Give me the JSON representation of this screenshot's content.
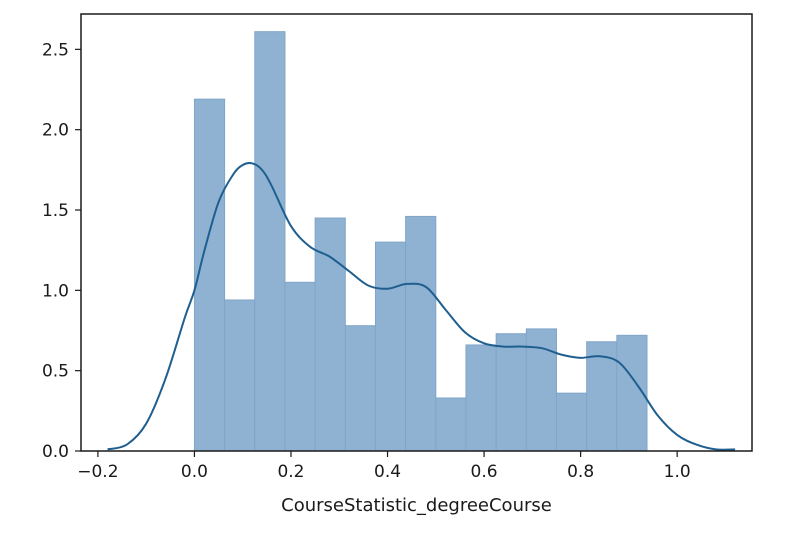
{
  "chart_data": {
    "type": "histogram",
    "xlabel": "CourseStatistic_degreeCourse",
    "ylabel": "",
    "title": "",
    "xlim": [
      -0.235,
      1.155
    ],
    "ylim": [
      0.0,
      2.72
    ],
    "x_ticks": [
      -0.2,
      0.0,
      0.2,
      0.4,
      0.6,
      0.8,
      1.0
    ],
    "x_tick_labels": [
      "−0.2",
      "0.0",
      "0.2",
      "0.4",
      "0.6",
      "0.8",
      "1.0"
    ],
    "y_ticks": [
      0.0,
      0.5,
      1.0,
      1.5,
      2.0,
      2.5
    ],
    "y_tick_labels": [
      "0.0",
      "0.5",
      "1.0",
      "1.5",
      "2.0",
      "2.5"
    ],
    "grid": false,
    "bins": [
      {
        "x0": 0.0,
        "x1": 0.0625,
        "density": 2.19
      },
      {
        "x0": 0.0625,
        "x1": 0.125,
        "density": 0.94
      },
      {
        "x0": 0.125,
        "x1": 0.1875,
        "density": 2.61
      },
      {
        "x0": 0.1875,
        "x1": 0.25,
        "density": 1.05
      },
      {
        "x0": 0.25,
        "x1": 0.3125,
        "density": 1.45
      },
      {
        "x0": 0.3125,
        "x1": 0.375,
        "density": 0.78
      },
      {
        "x0": 0.375,
        "x1": 0.4375,
        "density": 1.3
      },
      {
        "x0": 0.4375,
        "x1": 0.5,
        "density": 1.46
      },
      {
        "x0": 0.5,
        "x1": 0.5625,
        "density": 0.33
      },
      {
        "x0": 0.5625,
        "x1": 0.625,
        "density": 0.66
      },
      {
        "x0": 0.625,
        "x1": 0.6875,
        "density": 0.73
      },
      {
        "x0": 0.6875,
        "x1": 0.75,
        "density": 0.76
      },
      {
        "x0": 0.75,
        "x1": 0.8125,
        "density": 0.36
      },
      {
        "x0": 0.8125,
        "x1": 0.875,
        "density": 0.68
      },
      {
        "x0": 0.875,
        "x1": 0.9375,
        "density": 0.72
      }
    ],
    "kde_curve": {
      "x": [
        -0.18,
        -0.14,
        -0.1,
        -0.06,
        -0.02,
        0.0,
        0.02,
        0.05,
        0.08,
        0.1,
        0.12,
        0.14,
        0.16,
        0.2,
        0.24,
        0.28,
        0.32,
        0.36,
        0.4,
        0.44,
        0.48,
        0.52,
        0.56,
        0.6,
        0.64,
        0.68,
        0.72,
        0.76,
        0.8,
        0.84,
        0.88,
        0.92,
        0.96,
        1.0,
        1.04,
        1.08,
        1.12
      ],
      "y": [
        0.01,
        0.04,
        0.17,
        0.45,
        0.83,
        1.0,
        1.24,
        1.55,
        1.72,
        1.78,
        1.79,
        1.75,
        1.65,
        1.4,
        1.27,
        1.21,
        1.12,
        1.03,
        1.01,
        1.04,
        1.02,
        0.88,
        0.74,
        0.67,
        0.65,
        0.65,
        0.64,
        0.6,
        0.58,
        0.59,
        0.55,
        0.4,
        0.22,
        0.1,
        0.04,
        0.01,
        0.01
      ]
    },
    "colors": {
      "bar_fill": "#8fb2d2",
      "bar_edge": "#7fa5c8",
      "line": "#1f5f8f",
      "axes": "#1a1a1a",
      "text": "#1a1a1a"
    }
  }
}
